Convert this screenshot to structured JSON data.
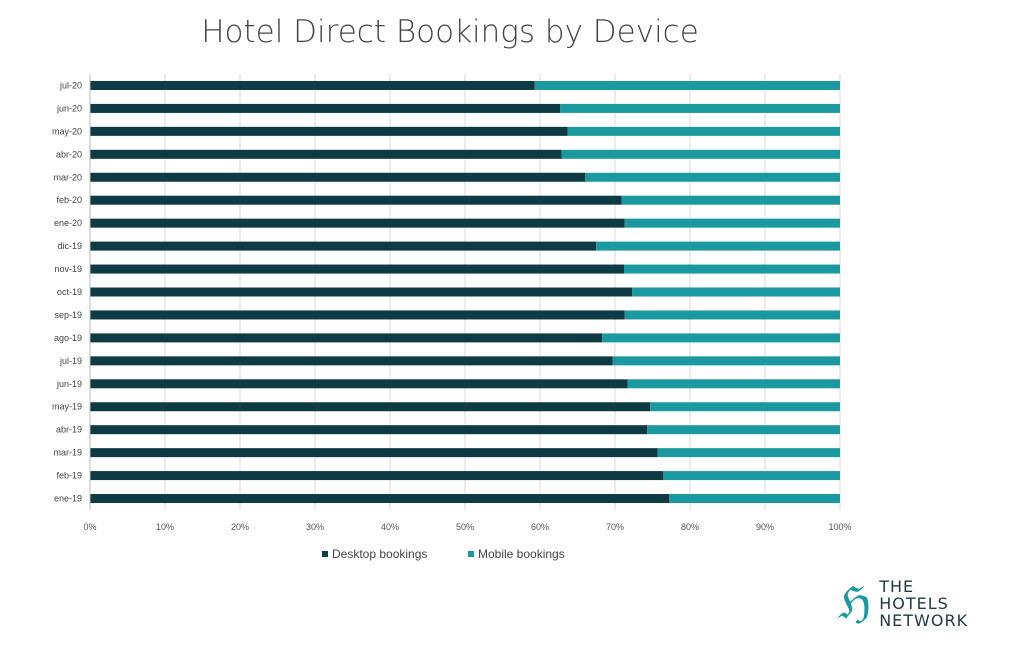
{
  "chart_data": {
    "type": "bar",
    "orientation": "horizontal",
    "stacked": "100%",
    "title": "Hotel Direct Bookings by Device",
    "categories": [
      "jul-20",
      "jun-20",
      "may-20",
      "abr-20",
      "mar-20",
      "feb-20",
      "ene-20",
      "dic-19",
      "nov-19",
      "oct-19",
      "sep-19",
      "ago-19",
      "jul-19",
      "jun-19",
      "may-19",
      "abr-19",
      "mar-19",
      "feb-19",
      "ene-19"
    ],
    "series": [
      {
        "name": "Desktop bookings",
        "color": "#0d3b44",
        "values": [
          59.3,
          62.7,
          63.7,
          62.9,
          66.0,
          70.9,
          71.3,
          67.5,
          71.2,
          72.3,
          71.3,
          68.3,
          69.7,
          71.7,
          74.7,
          74.3,
          75.7,
          76.4,
          77.2
        ]
      },
      {
        "name": "Mobile bookings",
        "color": "#1a9aa0",
        "values": [
          40.7,
          37.3,
          36.3,
          37.1,
          34.0,
          29.1,
          28.7,
          32.5,
          28.8,
          27.7,
          28.7,
          31.7,
          30.3,
          28.3,
          25.3,
          25.7,
          24.3,
          23.6,
          22.8
        ]
      }
    ],
    "xlim": [
      0,
      100
    ],
    "xticks": [
      "0%",
      "10%",
      "20%",
      "30%",
      "40%",
      "50%",
      "60%",
      "70%",
      "80%",
      "90%",
      "100%"
    ],
    "grid": "vertical",
    "legend": "bottom"
  },
  "logo": {
    "mark": "ℌ",
    "lines": [
      "THE",
      "HOTELS",
      "NETWORK"
    ]
  }
}
